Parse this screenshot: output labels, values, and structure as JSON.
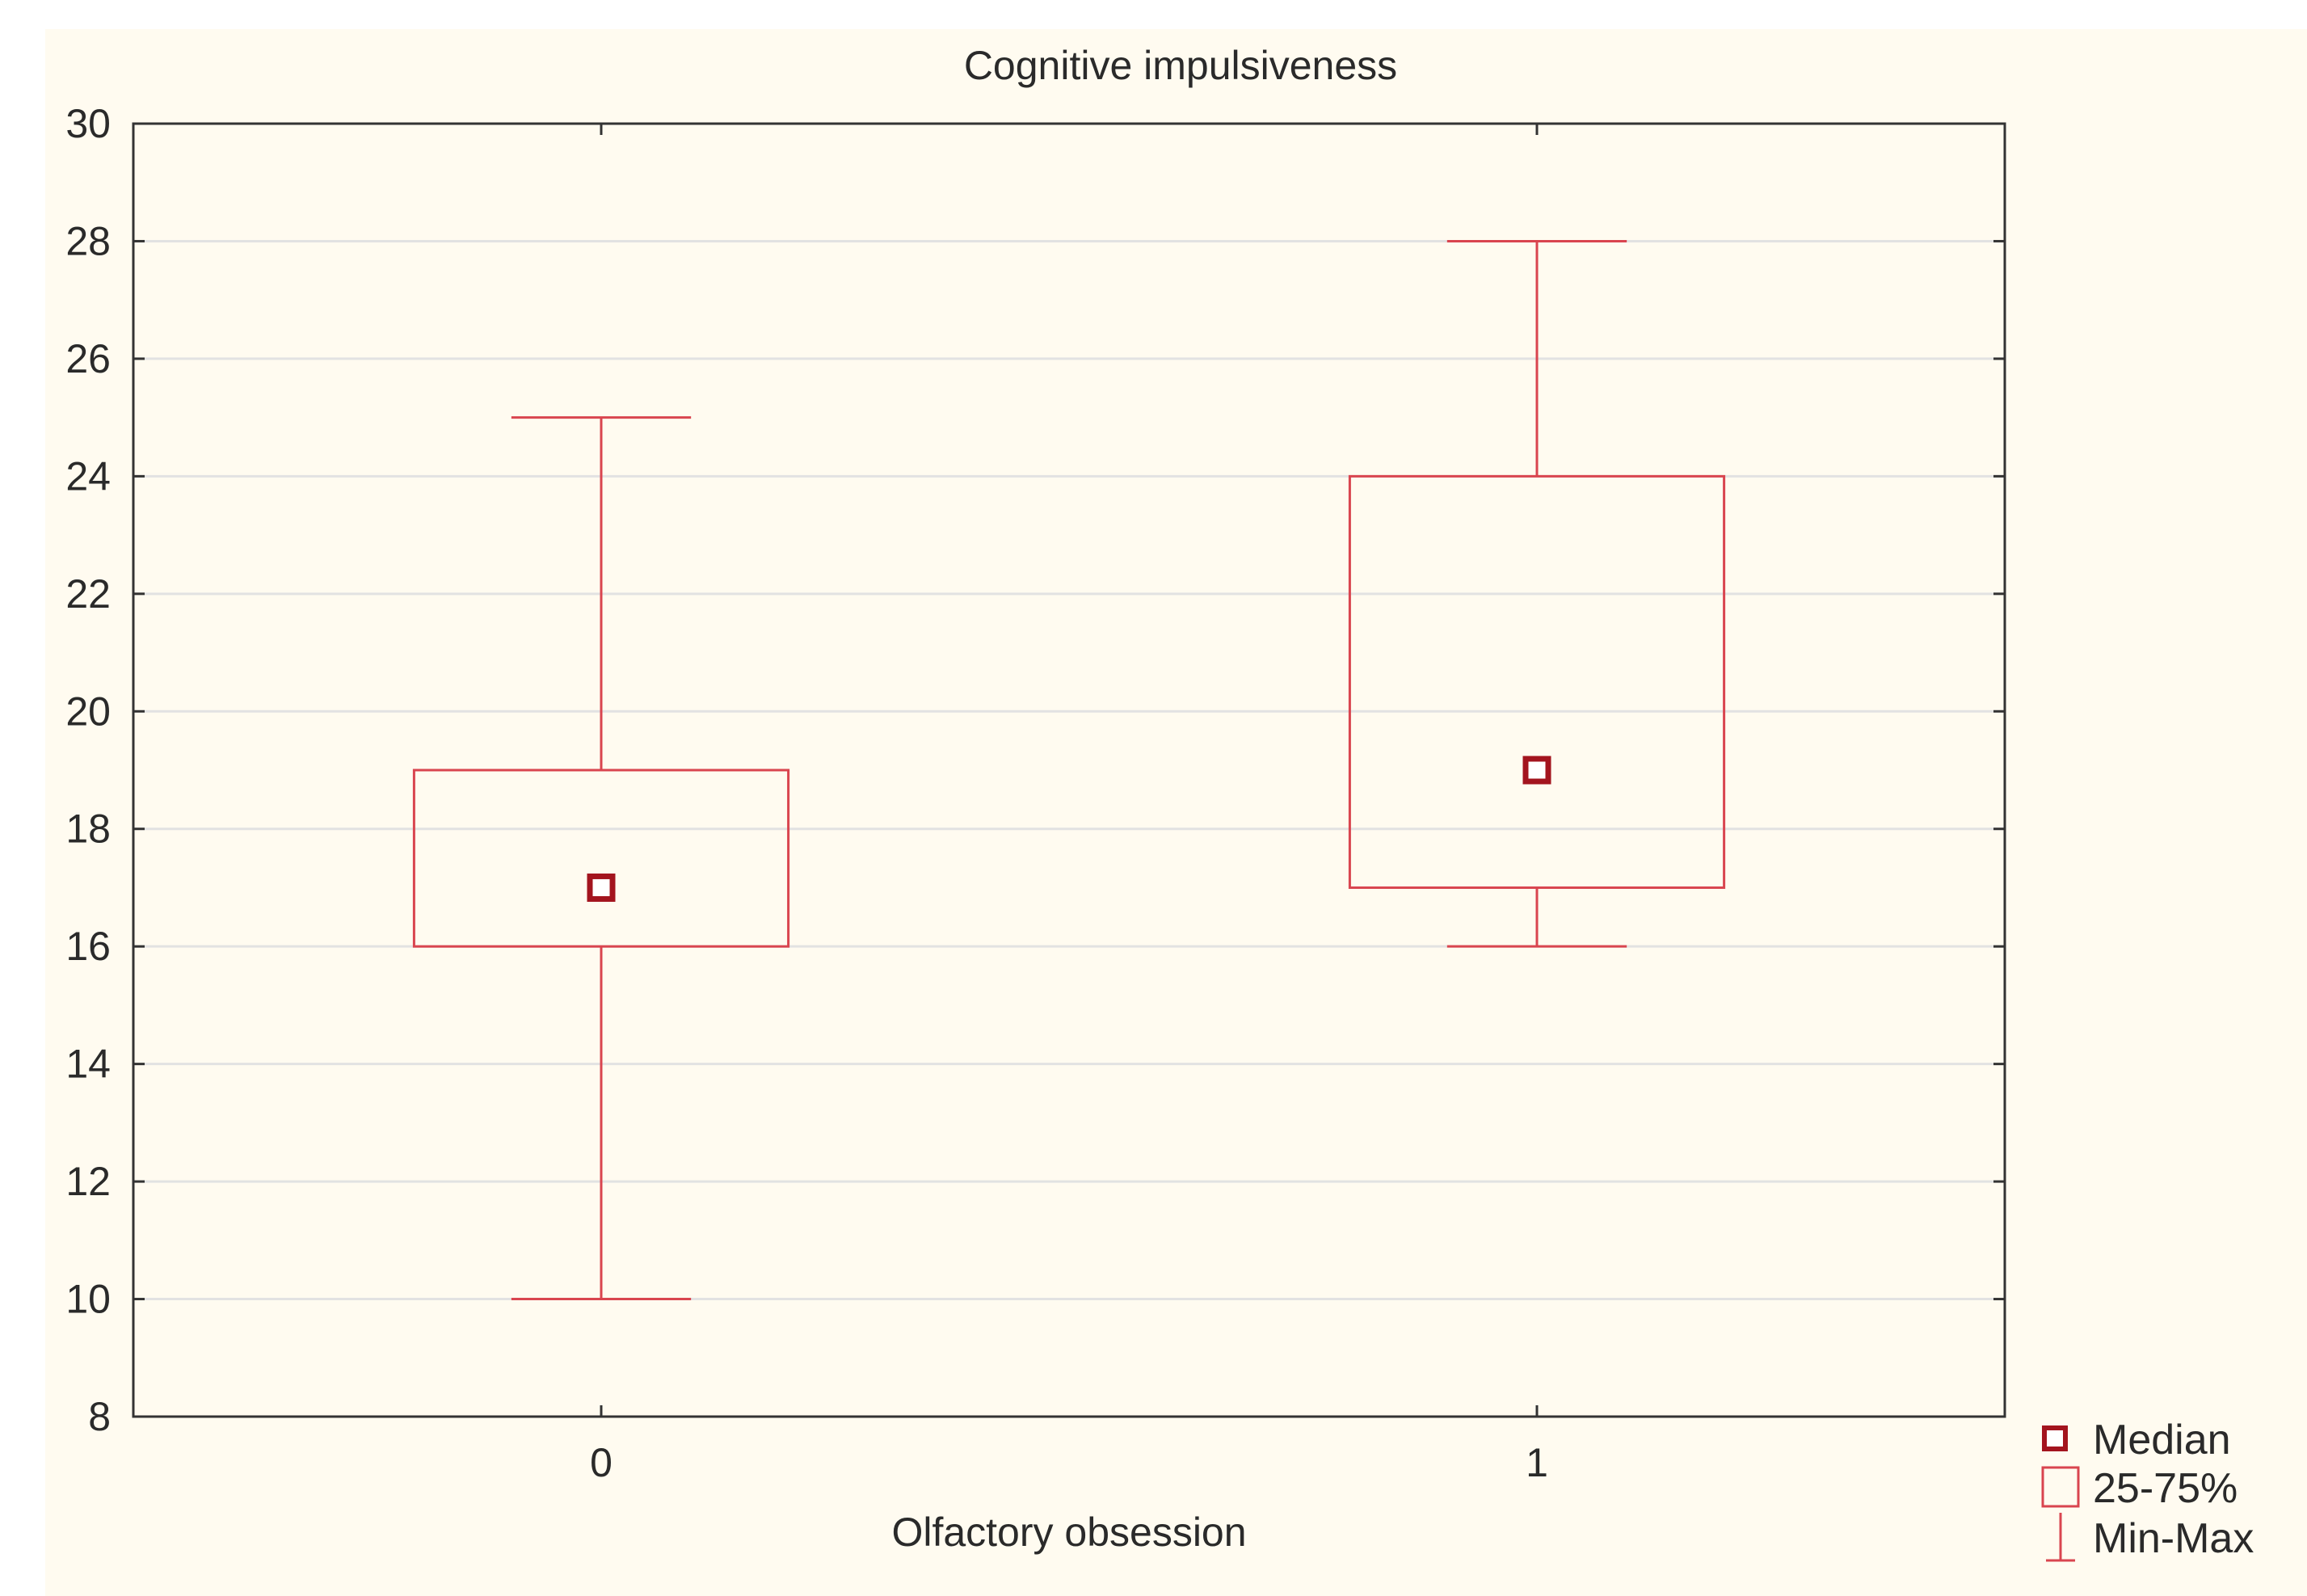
{
  "chart_data": {
    "type": "box",
    "title": "Cognitive impulsiveness",
    "xlabel": "Olfactory obsession",
    "ylabel": "",
    "categories": [
      "0",
      "1"
    ],
    "ylim": [
      8,
      30
    ],
    "yticks": [
      8,
      10,
      12,
      14,
      16,
      18,
      20,
      22,
      24,
      26,
      28,
      30
    ],
    "grid": true,
    "boxes": [
      {
        "category": "0",
        "min": 10,
        "q1": 16,
        "median": 17,
        "q3": 19,
        "max": 25
      },
      {
        "category": "1",
        "min": 16,
        "q1": 17,
        "median": 19,
        "q3": 24,
        "max": 28
      }
    ],
    "legend": {
      "position": "bottom-right",
      "entries": [
        "Median",
        "25-75%",
        "Min-Max"
      ]
    },
    "colors": {
      "box": "#d9454f",
      "median": "#a3141e",
      "grid": "#e2e2e2",
      "axis": "#333333",
      "background": "#fffbf0"
    }
  }
}
